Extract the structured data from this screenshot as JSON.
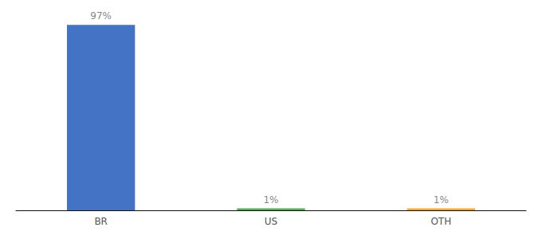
{
  "chart_data": {
    "type": "bar",
    "categories": [
      "BR",
      "US",
      "OTH"
    ],
    "values": [
      97,
      1,
      1
    ],
    "value_labels": [
      "97%",
      "1%",
      "1%"
    ],
    "data_labels": true,
    "colors": [
      "#4472c4",
      "#4caf50",
      "#ffa726"
    ],
    "ylim": [
      0,
      100
    ],
    "grid": false,
    "tick_labels": "x"
  }
}
